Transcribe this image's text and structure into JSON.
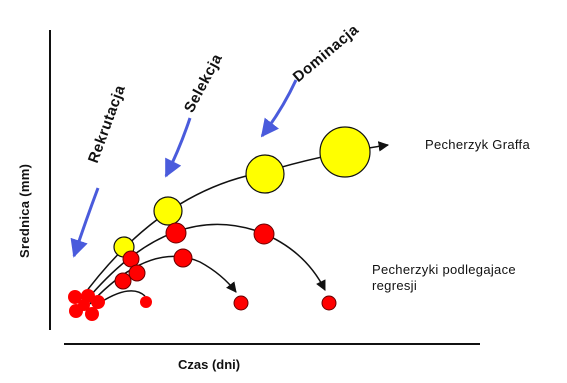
{
  "axes": {
    "y_label": "Srednica (mm)",
    "x_label": "Czas (dni)"
  },
  "phases": {
    "recruitment": "Rekrutacja",
    "selection": "Selekcja",
    "dominance": "Dominacja"
  },
  "annotations": {
    "graafian_follicle": "Pecherzyk Graffa",
    "regressing_follicles": "Pecherzyki podlegajace regresji"
  },
  "colors": {
    "dominant_follicle": "#ffff00",
    "regressing_follicle": "#ff0000",
    "phase_arrow": "#4a5bdc",
    "axis": "#111111"
  }
}
